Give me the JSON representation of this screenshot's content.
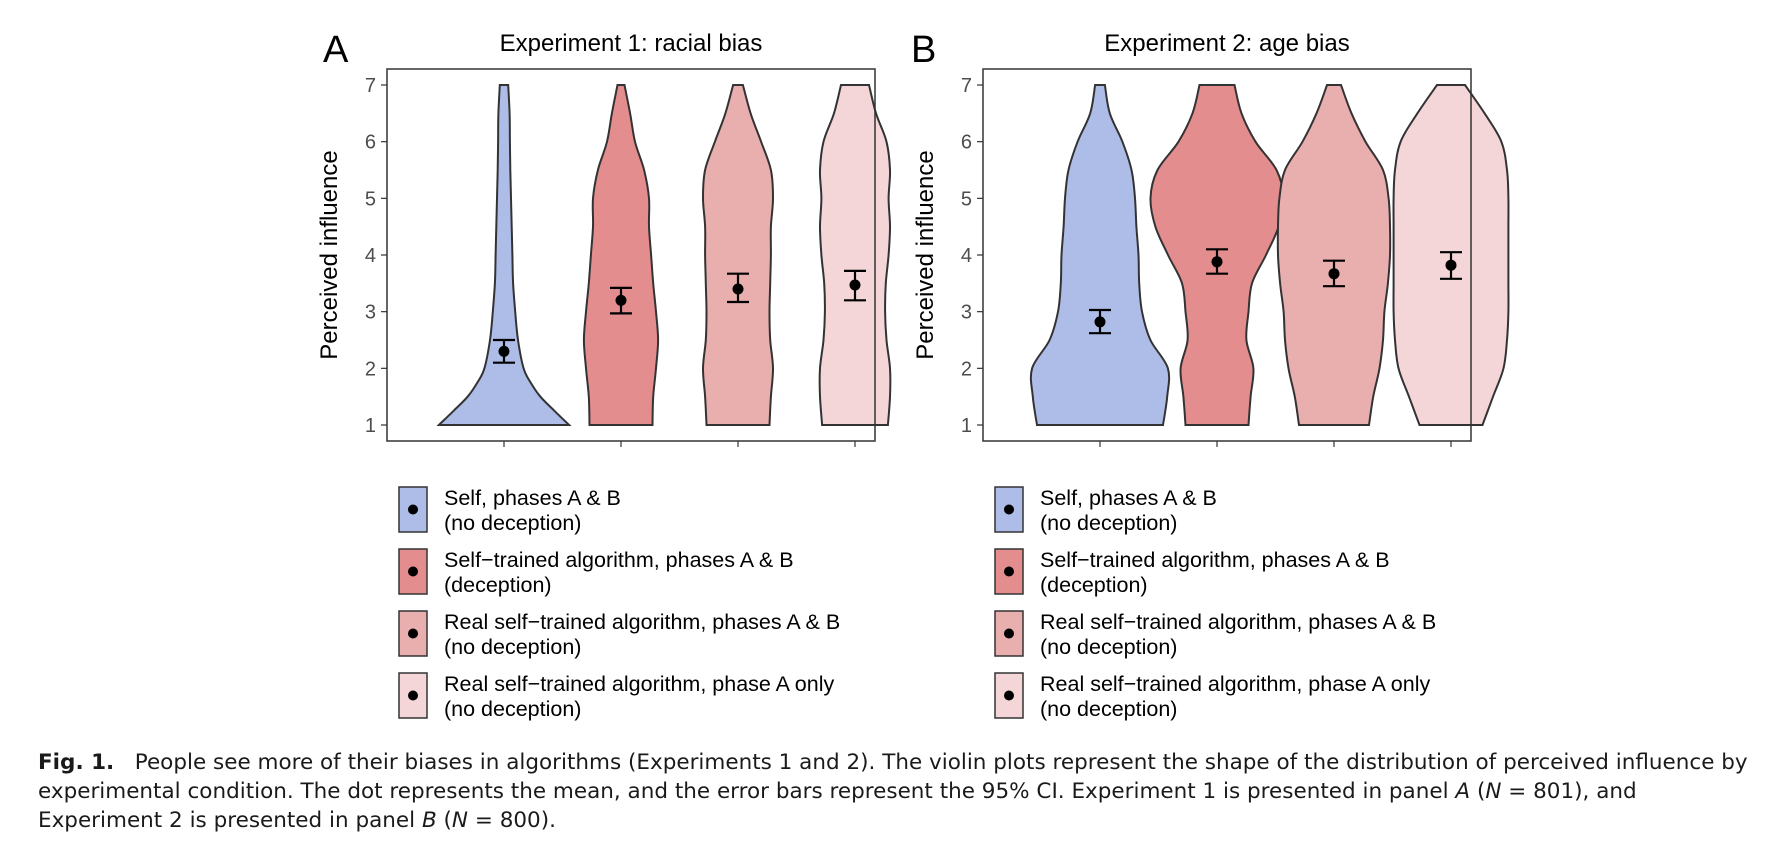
{
  "chart_data": [
    {
      "type": "violin",
      "panel_label": "A",
      "title": "Experiment 1: racial bias",
      "ylabel": "Perceived influence",
      "ylim": [
        1,
        7
      ],
      "yticks": [
        "1",
        "2",
        "3",
        "4",
        "5",
        "6",
        "7"
      ],
      "series": [
        {
          "name": "Self, phases A & B (no deception)",
          "color": "#aebde8",
          "mean": 2.3,
          "ci": [
            2.1,
            2.5
          ],
          "density": [
            [
              1,
              0.93
            ],
            [
              1.25,
              0.72
            ],
            [
              1.5,
              0.52
            ],
            [
              1.75,
              0.38
            ],
            [
              2,
              0.28
            ],
            [
              2.5,
              0.2
            ],
            [
              3,
              0.16
            ],
            [
              3.5,
              0.13
            ],
            [
              4,
              0.12
            ],
            [
              4.5,
              0.11
            ],
            [
              5,
              0.1
            ],
            [
              5.5,
              0.09
            ],
            [
              6,
              0.085
            ],
            [
              6.5,
              0.08
            ],
            [
              7,
              0.06
            ]
          ]
        },
        {
          "name": "Self−trained algorithm, phases A & B (deception)",
          "color": "#e48d8f",
          "mean": 3.2,
          "ci": [
            2.97,
            3.42
          ],
          "density": [
            [
              1,
              0.45
            ],
            [
              1.5,
              0.46
            ],
            [
              2,
              0.5
            ],
            [
              2.5,
              0.53
            ],
            [
              3,
              0.5
            ],
            [
              3.5,
              0.46
            ],
            [
              4,
              0.43
            ],
            [
              4.5,
              0.4
            ],
            [
              5,
              0.4
            ],
            [
              5.5,
              0.33
            ],
            [
              6,
              0.2
            ],
            [
              6.5,
              0.13
            ],
            [
              7,
              0.05
            ]
          ]
        },
        {
          "name": "Real self−trained algorithm, phases A & B (no deception)",
          "color": "#e9aeae",
          "mean": 3.4,
          "ci": [
            3.17,
            3.67
          ],
          "density": [
            [
              1,
              0.45
            ],
            [
              1.5,
              0.47
            ],
            [
              2,
              0.5
            ],
            [
              2.5,
              0.46
            ],
            [
              3,
              0.45
            ],
            [
              3.5,
              0.46
            ],
            [
              4,
              0.47
            ],
            [
              4.5,
              0.47
            ],
            [
              5,
              0.5
            ],
            [
              5.5,
              0.47
            ],
            [
              6,
              0.33
            ],
            [
              6.5,
              0.18
            ],
            [
              7,
              0.07
            ]
          ]
        },
        {
          "name": "Real self−trained algorithm, phase A only (no deception)",
          "color": "#f4d6d8",
          "mean": 3.47,
          "ci": [
            3.2,
            3.72
          ],
          "density": [
            [
              1,
              0.47
            ],
            [
              1.5,
              0.5
            ],
            [
              2,
              0.5
            ],
            [
              2.5,
              0.45
            ],
            [
              3,
              0.43
            ],
            [
              3.5,
              0.44
            ],
            [
              4,
              0.48
            ],
            [
              4.5,
              0.5
            ],
            [
              5,
              0.48
            ],
            [
              5.5,
              0.5
            ],
            [
              6,
              0.45
            ],
            [
              6.5,
              0.3
            ],
            [
              7,
              0.2
            ]
          ]
        }
      ]
    },
    {
      "type": "violin",
      "panel_label": "B",
      "title": "Experiment 2: age bias",
      "ylabel": "Perceived influence",
      "ylim": [
        1,
        7
      ],
      "yticks": [
        "1",
        "2",
        "3",
        "4",
        "5",
        "6",
        "7"
      ],
      "series": [
        {
          "name": "Self, phases A & B (no deception)",
          "color": "#aebde8",
          "mean": 2.82,
          "ci": [
            2.62,
            3.03
          ],
          "density": [
            [
              1,
              0.9
            ],
            [
              1.5,
              0.96
            ],
            [
              2,
              0.97
            ],
            [
              2.5,
              0.72
            ],
            [
              3,
              0.6
            ],
            [
              3.5,
              0.56
            ],
            [
              4,
              0.55
            ],
            [
              4.5,
              0.52
            ],
            [
              5,
              0.5
            ],
            [
              5.5,
              0.45
            ],
            [
              6,
              0.32
            ],
            [
              6.5,
              0.14
            ],
            [
              7,
              0.07
            ]
          ]
        },
        {
          "name": "Self−trained algorithm, phases A & B (deception)",
          "color": "#e48d8f",
          "mean": 3.88,
          "ci": [
            3.67,
            4.1
          ],
          "density": [
            [
              1,
              0.45
            ],
            [
              1.5,
              0.48
            ],
            [
              2,
              0.52
            ],
            [
              2.5,
              0.42
            ],
            [
              3,
              0.45
            ],
            [
              3.5,
              0.5
            ],
            [
              4,
              0.7
            ],
            [
              4.5,
              0.88
            ],
            [
              5,
              0.95
            ],
            [
              5.5,
              0.85
            ],
            [
              6,
              0.55
            ],
            [
              6.5,
              0.35
            ],
            [
              7,
              0.25
            ]
          ]
        },
        {
          "name": "Real self−trained algorithm, phases A & B (no deception)",
          "color": "#e9aeae",
          "mean": 3.67,
          "ci": [
            3.45,
            3.9
          ],
          "density": [
            [
              1,
              0.5
            ],
            [
              1.5,
              0.56
            ],
            [
              2,
              0.65
            ],
            [
              2.5,
              0.7
            ],
            [
              3,
              0.72
            ],
            [
              3.5,
              0.77
            ],
            [
              4,
              0.8
            ],
            [
              4.5,
              0.8
            ],
            [
              5,
              0.78
            ],
            [
              5.5,
              0.7
            ],
            [
              6,
              0.45
            ],
            [
              6.5,
              0.25
            ],
            [
              7,
              0.1
            ]
          ]
        },
        {
          "name": "Real self−trained algorithm, phase A only (no deception)",
          "color": "#f4d6d8",
          "mean": 3.82,
          "ci": [
            3.58,
            4.05
          ],
          "density": [
            [
              1,
              0.45
            ],
            [
              1.5,
              0.6
            ],
            [
              2,
              0.75
            ],
            [
              2.5,
              0.8
            ],
            [
              3,
              0.82
            ],
            [
              3.5,
              0.82
            ],
            [
              4,
              0.82
            ],
            [
              4.5,
              0.82
            ],
            [
              5,
              0.82
            ],
            [
              5.5,
              0.8
            ],
            [
              6,
              0.72
            ],
            [
              6.5,
              0.48
            ],
            [
              7,
              0.2
            ]
          ]
        }
      ]
    }
  ],
  "legend": [
    {
      "line1": "Self, phases A & B",
      "line2": "(no deception)",
      "color": "#aebde8"
    },
    {
      "line1": "Self−trained algorithm, phases A & B",
      "line2": "(deception)",
      "color": "#e48d8f"
    },
    {
      "line1": "Real self−trained algorithm, phases A & B",
      "line2": "(no deception)",
      "color": "#e9aeae"
    },
    {
      "line1": "Real self−trained algorithm, phase A only",
      "line2": "(no deception)",
      "color": "#f4d6d8"
    }
  ],
  "caption": {
    "label": "Fig. 1.",
    "text_1": "People see more of their biases in algorithms (Experiments 1 and 2). The violin plots represent the shape of the distribution of perceived influence by experimental condition. The dot represents the mean, and the error bars represent the 95% CI. Experiment 1 is presented in panel ",
    "panel_a": "A",
    "text_2": " (",
    "n_symbol_1": "N",
    "text_3": " = 801), and Experiment 2 is presented in panel ",
    "panel_b": "B",
    "text_4": " (",
    "n_symbol_2": "N",
    "text_5": " = 800)."
  }
}
